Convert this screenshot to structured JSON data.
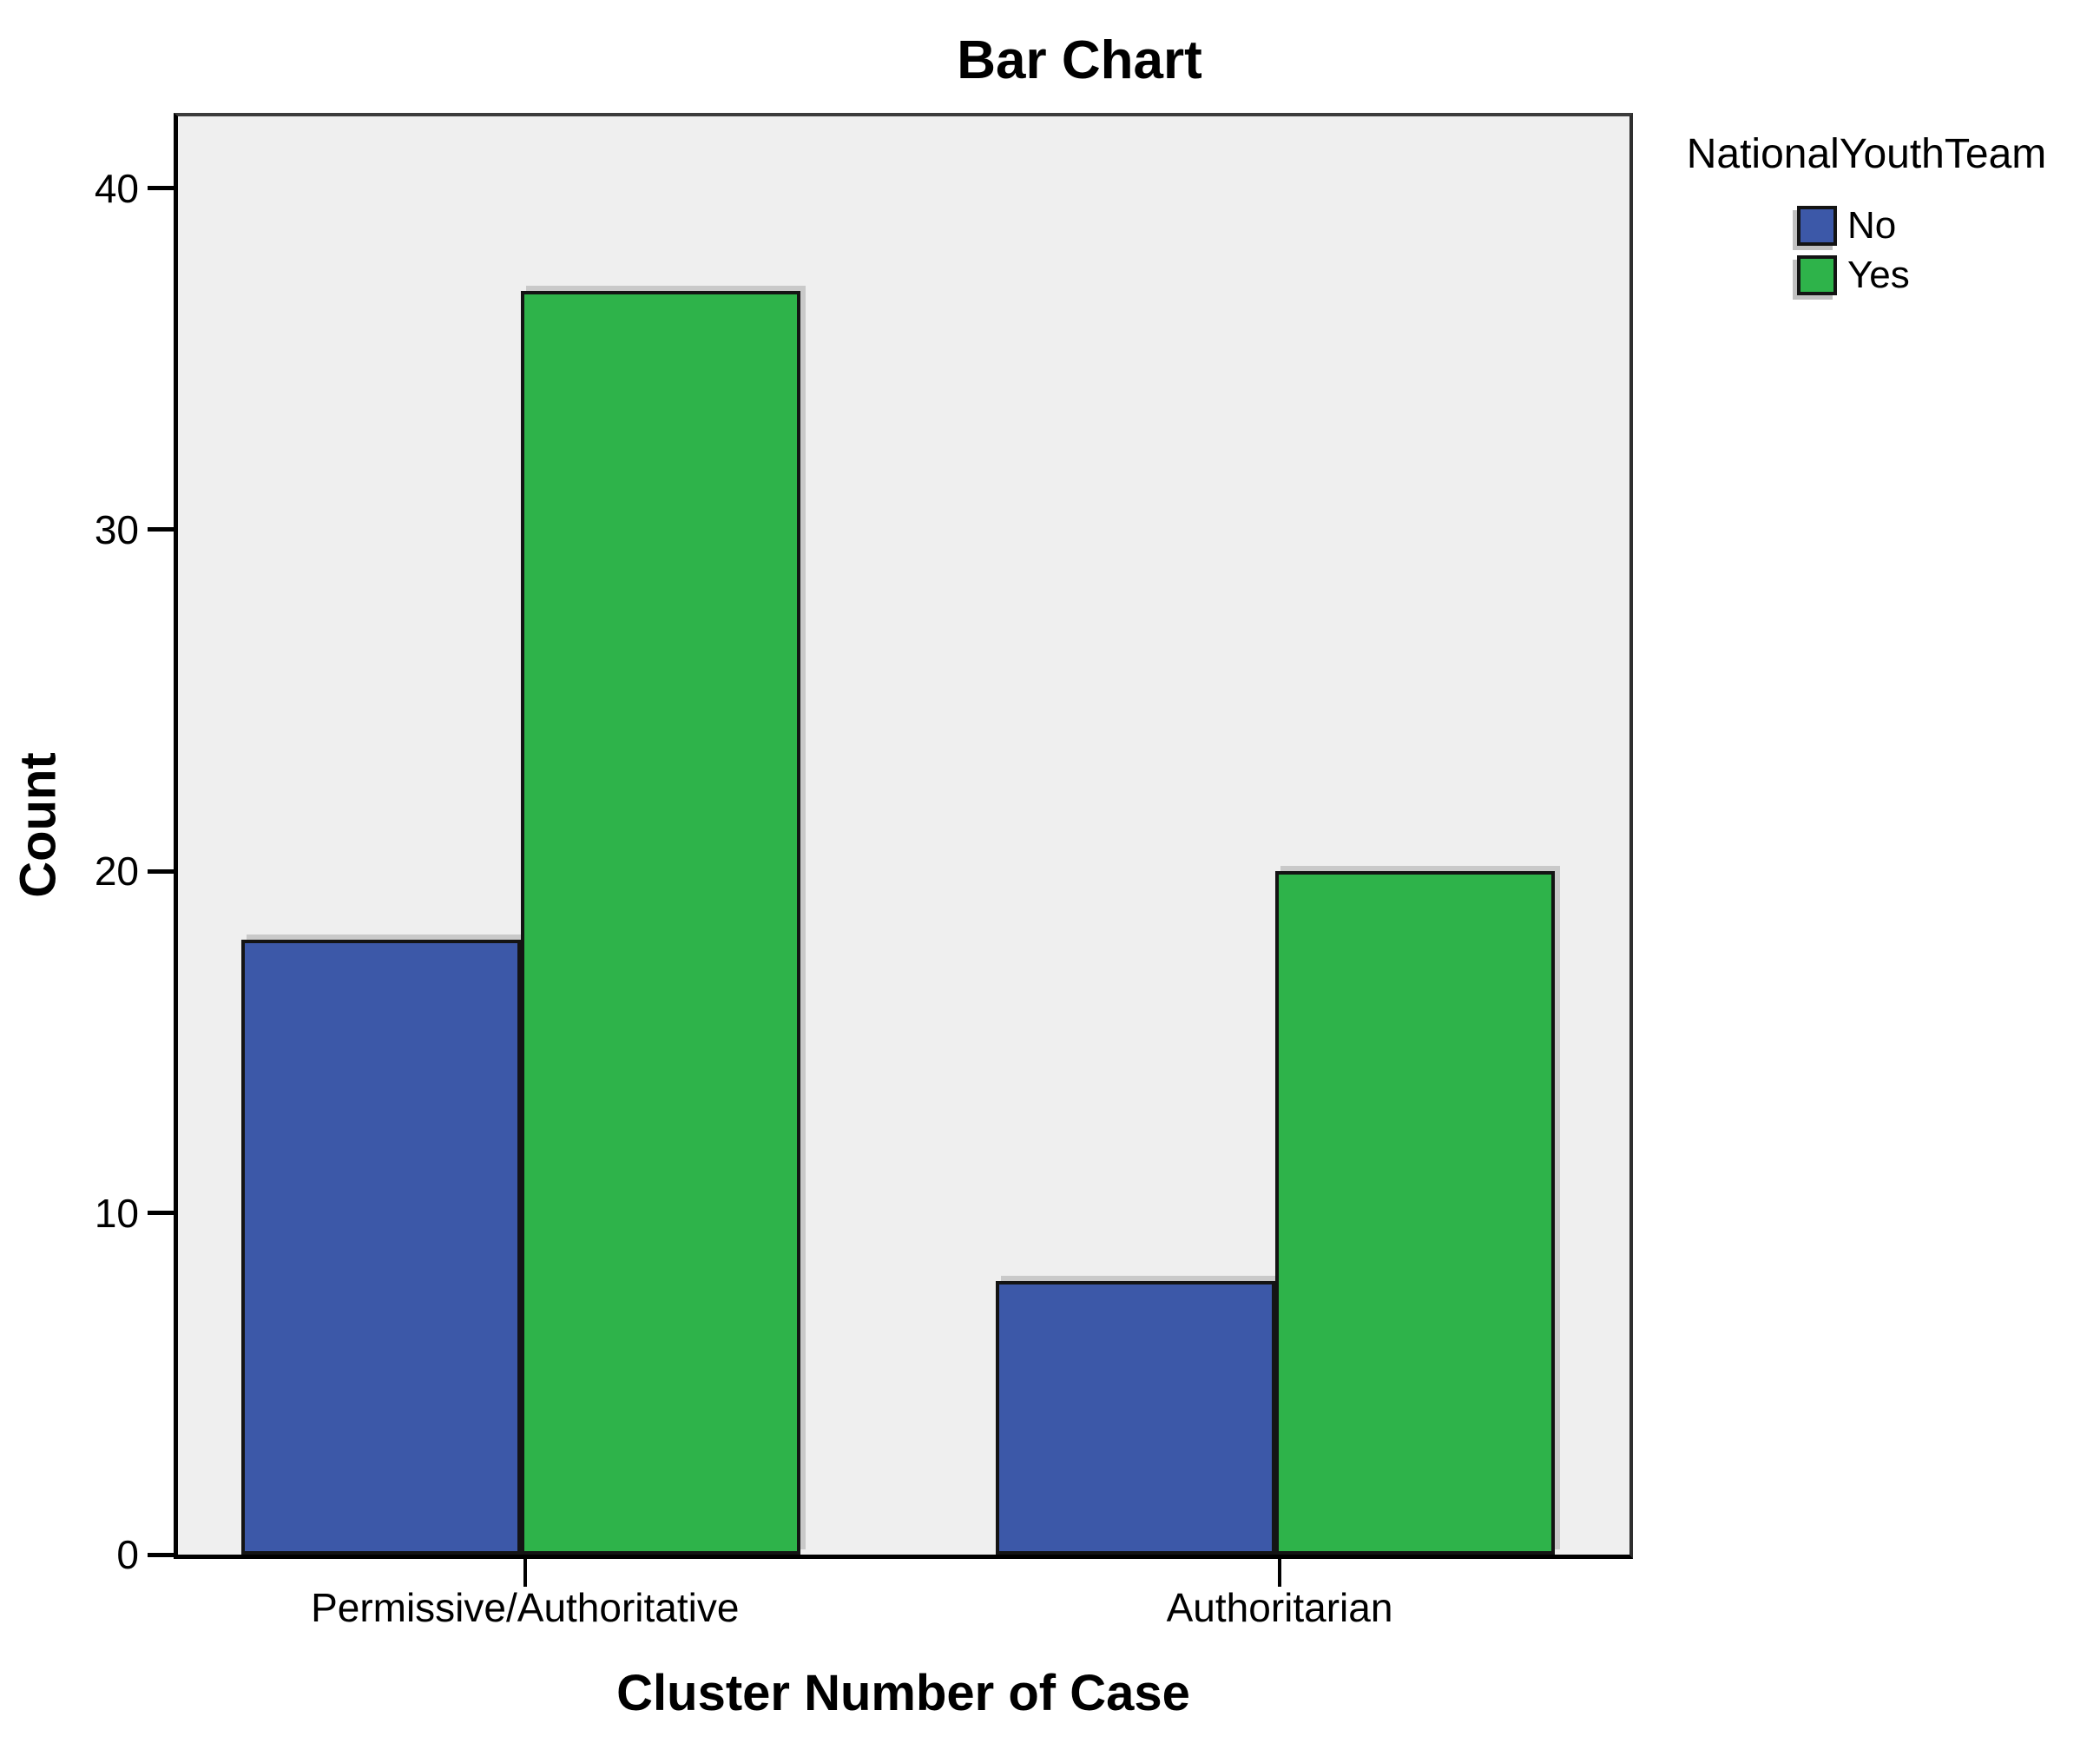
{
  "chart_data": {
    "type": "bar",
    "title": "Bar Chart",
    "xlabel": "Cluster Number of Case",
    "ylabel": "Count",
    "categories": [
      "Permissive/Authoritative",
      "Authoritarian"
    ],
    "series": [
      {
        "name": "No",
        "color": "#3C58A8",
        "values": [
          18,
          8
        ]
      },
      {
        "name": "Yes",
        "color": "#2EB34A",
        "values": [
          37,
          20
        ]
      }
    ],
    "legend": {
      "title": "NationalYouthTeam",
      "position": "outside-top-right"
    },
    "ylim": [
      0,
      42
    ],
    "yticks": [
      0,
      10,
      20,
      30,
      40
    ],
    "grid": false,
    "plot_bg": "#EFEFEF"
  }
}
